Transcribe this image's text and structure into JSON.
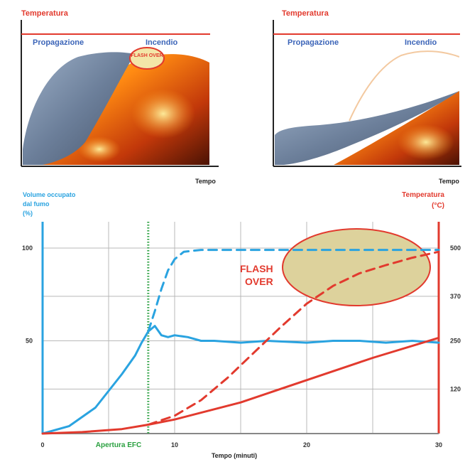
{
  "chart_data": [
    {
      "type": "area",
      "panel": "top-left",
      "ylabel": "Temperatura",
      "xlabel": "Tempo",
      "phase_labels": [
        "Propagazione",
        "Incendio"
      ],
      "annotation": "FLASH OVER"
    },
    {
      "type": "area",
      "panel": "top-right",
      "ylabel": "Temperatura",
      "xlabel": "Tempo",
      "phase_labels": [
        "Propagazione",
        "Incendio"
      ]
    },
    {
      "type": "line",
      "panel": "bottom",
      "xlabel": "Tempo (minuti)",
      "ylabel_left": [
        "Volume occupato",
        "dal fumo",
        "(%)"
      ],
      "ylabel_right": [
        "Temperatura",
        "(°C)"
      ],
      "x_ticks": [
        "0",
        "10",
        "20",
        "30"
      ],
      "y_left_ticks": [
        "50",
        "100"
      ],
      "y_right_ticks": [
        "120",
        "250",
        "370",
        "500"
      ],
      "xlim": [
        0,
        30
      ],
      "ylim_left": [
        0,
        100
      ],
      "ylim_right": [
        0,
        500
      ],
      "vertical_marker": {
        "x": 8,
        "label": "Apertura EFC"
      },
      "annotation": [
        "FLASH",
        "OVER"
      ],
      "series": [
        {
          "axis": "left",
          "color": "#2aa3e0",
          "dash": false,
          "points": [
            [
              0,
              0
            ],
            [
              2,
              4
            ],
            [
              4,
              14
            ],
            [
              6,
              32
            ],
            [
              7,
              42
            ],
            [
              7.5,
              49
            ],
            [
              8,
              55
            ],
            [
              8.5,
              58
            ],
            [
              9,
              53
            ],
            [
              9.5,
              52
            ],
            [
              10,
              53
            ],
            [
              11,
              52
            ],
            [
              12,
              50
            ],
            [
              13,
              50
            ],
            [
              15,
              49
            ],
            [
              17,
              50
            ],
            [
              20,
              49
            ],
            [
              22,
              50
            ],
            [
              24,
              50
            ],
            [
              26,
              49
            ],
            [
              28,
              50
            ],
            [
              30,
              49
            ]
          ]
        },
        {
          "axis": "left",
          "color": "#2aa3e0",
          "dash": true,
          "points": [
            [
              8,
              55
            ],
            [
              8.5,
              66
            ],
            [
              9,
              78
            ],
            [
              9.5,
              88
            ],
            [
              10,
              94
            ],
            [
              10.7,
              98
            ],
            [
              12,
              99
            ],
            [
              15,
              99
            ],
            [
              20,
              99
            ],
            [
              25,
              99
            ],
            [
              30,
              99
            ]
          ]
        },
        {
          "axis": "right",
          "color": "#e23a2e",
          "dash": false,
          "points": [
            [
              0,
              0
            ],
            [
              3,
              4
            ],
            [
              6,
              12
            ],
            [
              8,
              24
            ],
            [
              10,
              38
            ],
            [
              15,
              84
            ],
            [
              20,
              144
            ],
            [
              25,
              204
            ],
            [
              30,
              258
            ]
          ]
        },
        {
          "axis": "right",
          "color": "#e23a2e",
          "dash": true,
          "points": [
            [
              8,
              24
            ],
            [
              10,
              48
            ],
            [
              12,
              90
            ],
            [
              14,
              150
            ],
            [
              16,
              218
            ],
            [
              18,
              286
            ],
            [
              20,
              350
            ],
            [
              22,
              398
            ],
            [
              24,
              432
            ],
            [
              26,
              454
            ],
            [
              28,
              474
            ],
            [
              30,
              490
            ]
          ]
        }
      ]
    }
  ]
}
